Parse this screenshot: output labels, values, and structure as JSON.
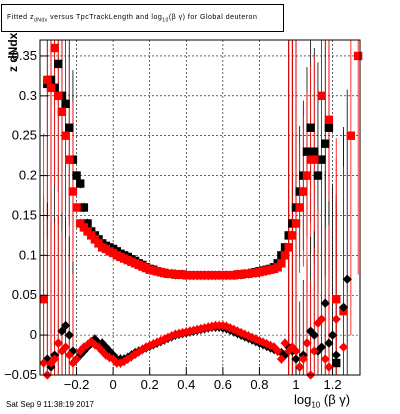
{
  "title": {
    "prefix": "Fitted z",
    "sub1": "dNdx",
    "mid": " versus TpcTrackLength and log",
    "sub2": "10",
    "suffix": "(β γ) for Global deuteron"
  },
  "timestamp": "Sat Sep  9 11:38:19 2017",
  "axis_labels": {
    "x_main": "log",
    "x_sub": "10",
    "x_tail": "(β γ)",
    "y": "z dNdx"
  },
  "colors": {
    "series_black": "#000000",
    "series_red": "#ff0000",
    "frame": "#000000"
  },
  "chart_data": {
    "type": "scatter",
    "title": "Fitted z dNdx versus TpcTrackLength and log10(β γ) for Global deuteron",
    "xlabel": "log10(β γ)",
    "ylabel": "z dNdx",
    "xlim": [
      -0.4,
      1.35
    ],
    "ylim": [
      -0.05,
      0.37
    ],
    "x_ticks": [
      -0.2,
      0,
      0.2,
      0.4,
      0.6,
      0.8,
      1,
      1.2
    ],
    "x_tick_labels": [
      "−0.2",
      "0",
      "0.2",
      "0.4",
      "0.6",
      "0.8",
      "1",
      "1.2"
    ],
    "y_ticks": [
      -0.05,
      0,
      0.05,
      0.1,
      0.15,
      0.2,
      0.25,
      0.3,
      0.35
    ],
    "y_tick_labels": [
      "−0.05",
      "0",
      "0.05",
      "0.1",
      "0.15",
      "0.2",
      "0.25",
      "0.3",
      "0.35"
    ],
    "grid": true,
    "series": [
      {
        "color": "black",
        "marker": "square",
        "x": [
          -0.36,
          -0.34,
          -0.32,
          -0.3,
          -0.28,
          -0.26,
          -0.24,
          -0.22,
          -0.2,
          -0.18,
          -0.16,
          -0.14,
          -0.12,
          -0.1,
          -0.08,
          -0.06,
          -0.04,
          -0.02,
          0.0,
          0.02,
          0.04,
          0.06,
          0.08,
          0.1,
          0.12,
          0.14,
          0.16,
          0.18,
          0.2,
          0.22,
          0.24,
          0.26,
          0.28,
          0.3,
          0.32,
          0.34,
          0.36,
          0.38,
          0.4,
          0.42,
          0.44,
          0.46,
          0.48,
          0.5,
          0.52,
          0.54,
          0.56,
          0.58,
          0.6,
          0.62,
          0.64,
          0.66,
          0.68,
          0.7,
          0.72,
          0.74,
          0.76,
          0.78,
          0.8,
          0.82,
          0.84,
          0.86,
          0.88,
          0.9,
          0.92,
          0.94,
          0.96,
          0.98,
          1.0,
          1.02,
          1.04,
          1.06,
          1.08,
          1.1,
          1.12,
          1.14,
          1.16,
          1.18,
          1.22
        ],
        "y": [
          0.315,
          0.32,
          0.31,
          0.34,
          0.3,
          0.29,
          0.26,
          0.22,
          0.2,
          0.19,
          0.16,
          0.14,
          0.13,
          0.125,
          0.12,
          0.115,
          0.112,
          0.11,
          0.108,
          0.105,
          0.102,
          0.1,
          0.098,
          0.095,
          0.093,
          0.09,
          0.088,
          0.085,
          0.083,
          0.082,
          0.08,
          0.079,
          0.078,
          0.077,
          0.077,
          0.076,
          0.076,
          0.076,
          0.075,
          0.075,
          0.075,
          0.075,
          0.075,
          0.075,
          0.075,
          0.075,
          0.075,
          0.075,
          0.075,
          0.075,
          0.075,
          0.075,
          0.076,
          0.076,
          0.077,
          0.077,
          0.078,
          0.079,
          0.08,
          0.081,
          0.082,
          0.083,
          0.085,
          0.09,
          0.1,
          0.11,
          0.125,
          0.14,
          0.16,
          0.18,
          0.2,
          0.23,
          0.26,
          0.23,
          0.2,
          0.22,
          0.24,
          0.26,
          -0.035
        ]
      },
      {
        "color": "red",
        "marker": "square",
        "x": [
          -0.38,
          -0.36,
          -0.34,
          -0.32,
          -0.3,
          -0.28,
          -0.26,
          -0.24,
          -0.22,
          -0.2,
          -0.18,
          -0.16,
          -0.14,
          -0.12,
          -0.1,
          -0.08,
          -0.06,
          -0.04,
          -0.02,
          0.0,
          0.02,
          0.04,
          0.06,
          0.08,
          0.1,
          0.12,
          0.14,
          0.16,
          0.18,
          0.2,
          0.22,
          0.24,
          0.26,
          0.28,
          0.3,
          0.32,
          0.34,
          0.36,
          0.38,
          0.4,
          0.42,
          0.44,
          0.46,
          0.48,
          0.5,
          0.52,
          0.54,
          0.56,
          0.58,
          0.6,
          0.62,
          0.64,
          0.66,
          0.68,
          0.7,
          0.72,
          0.74,
          0.76,
          0.78,
          0.8,
          0.82,
          0.84,
          0.86,
          0.88,
          0.9,
          0.92,
          0.94,
          0.96,
          0.98,
          1.0,
          1.02,
          1.04,
          1.06,
          1.08,
          1.1,
          1.14,
          1.18,
          1.22,
          1.26,
          1.3,
          1.34
        ],
        "y": [
          0.045,
          0.32,
          0.31,
          0.36,
          0.3,
          0.28,
          0.25,
          0.22,
          0.18,
          0.16,
          0.14,
          0.135,
          0.13,
          0.125,
          0.12,
          0.115,
          0.11,
          0.108,
          0.105,
          0.103,
          0.1,
          0.098,
          0.096,
          0.094,
          0.092,
          0.09,
          0.088,
          0.086,
          0.084,
          0.082,
          0.081,
          0.08,
          0.079,
          0.078,
          0.077,
          0.077,
          0.076,
          0.076,
          0.076,
          0.075,
          0.075,
          0.075,
          0.075,
          0.075,
          0.075,
          0.075,
          0.075,
          0.075,
          0.075,
          0.075,
          0.075,
          0.075,
          0.075,
          0.076,
          0.076,
          0.077,
          0.077,
          0.078,
          0.078,
          0.079,
          0.08,
          0.081,
          0.082,
          0.083,
          0.085,
          0.09,
          0.1,
          0.11,
          0.125,
          0.14,
          0.16,
          0.18,
          0.2,
          0.22,
          0.22,
          0.3,
          0.27,
          0.045,
          0.03,
          0.25,
          0.35
        ]
      },
      {
        "color": "black",
        "marker": "diamond",
        "x": [
          -0.36,
          -0.34,
          -0.32,
          -0.3,
          -0.28,
          -0.26,
          -0.24,
          -0.22,
          -0.2,
          -0.18,
          -0.16,
          -0.14,
          -0.12,
          -0.1,
          -0.08,
          -0.06,
          -0.04,
          -0.02,
          0.0,
          0.02,
          0.04,
          0.06,
          0.08,
          0.1,
          0.12,
          0.14,
          0.16,
          0.18,
          0.2,
          0.22,
          0.24,
          0.26,
          0.28,
          0.3,
          0.32,
          0.34,
          0.36,
          0.38,
          0.4,
          0.42,
          0.44,
          0.46,
          0.48,
          0.5,
          0.52,
          0.54,
          0.56,
          0.58,
          0.6,
          0.62,
          0.64,
          0.66,
          0.68,
          0.7,
          0.72,
          0.74,
          0.76,
          0.78,
          0.8,
          0.82,
          0.84,
          0.86,
          0.88,
          0.9,
          0.92,
          0.94,
          0.96,
          0.98,
          1.0,
          1.02,
          1.04,
          1.06,
          1.08,
          1.1,
          1.12,
          1.14,
          1.16,
          1.18,
          1.2,
          1.22,
          1.26,
          1.28
        ],
        "y": [
          -0.03,
          -0.04,
          -0.025,
          -0.01,
          0.005,
          0.012,
          0.0,
          -0.02,
          -0.03,
          -0.025,
          -0.02,
          -0.015,
          -0.01,
          -0.005,
          -0.01,
          -0.01,
          -0.015,
          -0.02,
          -0.025,
          -0.03,
          -0.03,
          -0.03,
          -0.028,
          -0.025,
          -0.022,
          -0.02,
          -0.018,
          -0.016,
          -0.014,
          -0.012,
          -0.01,
          -0.008,
          -0.006,
          -0.004,
          -0.002,
          0.0,
          0.001,
          0.002,
          0.003,
          0.004,
          0.005,
          0.006,
          0.007,
          0.008,
          0.009,
          0.01,
          0.01,
          0.01,
          0.009,
          0.008,
          0.006,
          0.004,
          0.002,
          0.0,
          -0.002,
          -0.004,
          -0.006,
          -0.008,
          -0.01,
          -0.012,
          -0.014,
          -0.016,
          -0.018,
          -0.02,
          -0.022,
          -0.025,
          -0.015,
          -0.02,
          -0.03,
          -0.04,
          -0.025,
          -0.01,
          0.005,
          0.0,
          -0.02,
          -0.015,
          0.04,
          -0.01,
          0.0,
          -0.025,
          0.035,
          0.07
        ]
      },
      {
        "color": "red",
        "marker": "diamond",
        "x": [
          -0.38,
          -0.36,
          -0.34,
          -0.32,
          -0.3,
          -0.28,
          -0.26,
          -0.24,
          -0.22,
          -0.2,
          -0.18,
          -0.16,
          -0.14,
          -0.12,
          -0.1,
          -0.08,
          -0.06,
          -0.04,
          -0.02,
          0.0,
          0.02,
          0.04,
          0.06,
          0.08,
          0.1,
          0.12,
          0.14,
          0.16,
          0.18,
          0.2,
          0.22,
          0.24,
          0.26,
          0.28,
          0.3,
          0.32,
          0.34,
          0.36,
          0.38,
          0.4,
          0.42,
          0.44,
          0.46,
          0.48,
          0.5,
          0.52,
          0.54,
          0.56,
          0.58,
          0.6,
          0.62,
          0.64,
          0.66,
          0.68,
          0.7,
          0.72,
          0.74,
          0.76,
          0.78,
          0.8,
          0.82,
          0.84,
          0.86,
          0.88,
          0.9,
          0.92,
          0.94,
          0.96,
          0.98,
          1.0,
          1.02,
          1.04,
          1.06,
          1.08,
          1.1,
          1.12,
          1.14,
          1.16,
          1.18,
          1.22,
          1.26
        ],
        "y": [
          -0.035,
          -0.05,
          -0.035,
          -0.03,
          -0.01,
          -0.02,
          -0.015,
          -0.025,
          -0.035,
          -0.03,
          -0.02,
          -0.015,
          -0.012,
          -0.008,
          -0.012,
          -0.015,
          -0.02,
          -0.025,
          -0.028,
          -0.03,
          -0.035,
          -0.035,
          -0.033,
          -0.03,
          -0.027,
          -0.024,
          -0.021,
          -0.018,
          -0.015,
          -0.013,
          -0.011,
          -0.009,
          -0.007,
          -0.005,
          -0.003,
          -0.001,
          0.001,
          0.002,
          0.003,
          0.004,
          0.005,
          0.006,
          0.007,
          0.008,
          0.009,
          0.01,
          0.011,
          0.012,
          0.012,
          0.012,
          0.011,
          0.009,
          0.007,
          0.005,
          0.003,
          0.001,
          -0.001,
          -0.003,
          -0.005,
          -0.007,
          -0.009,
          -0.011,
          -0.013,
          -0.015,
          -0.02,
          -0.03,
          -0.01,
          -0.02,
          -0.015,
          -0.02,
          -0.04,
          -0.03,
          -0.01,
          -0.05,
          -0.02,
          0.015,
          0.02,
          -0.03,
          -0.04,
          0.02,
          -0.015
        ]
      }
    ]
  }
}
